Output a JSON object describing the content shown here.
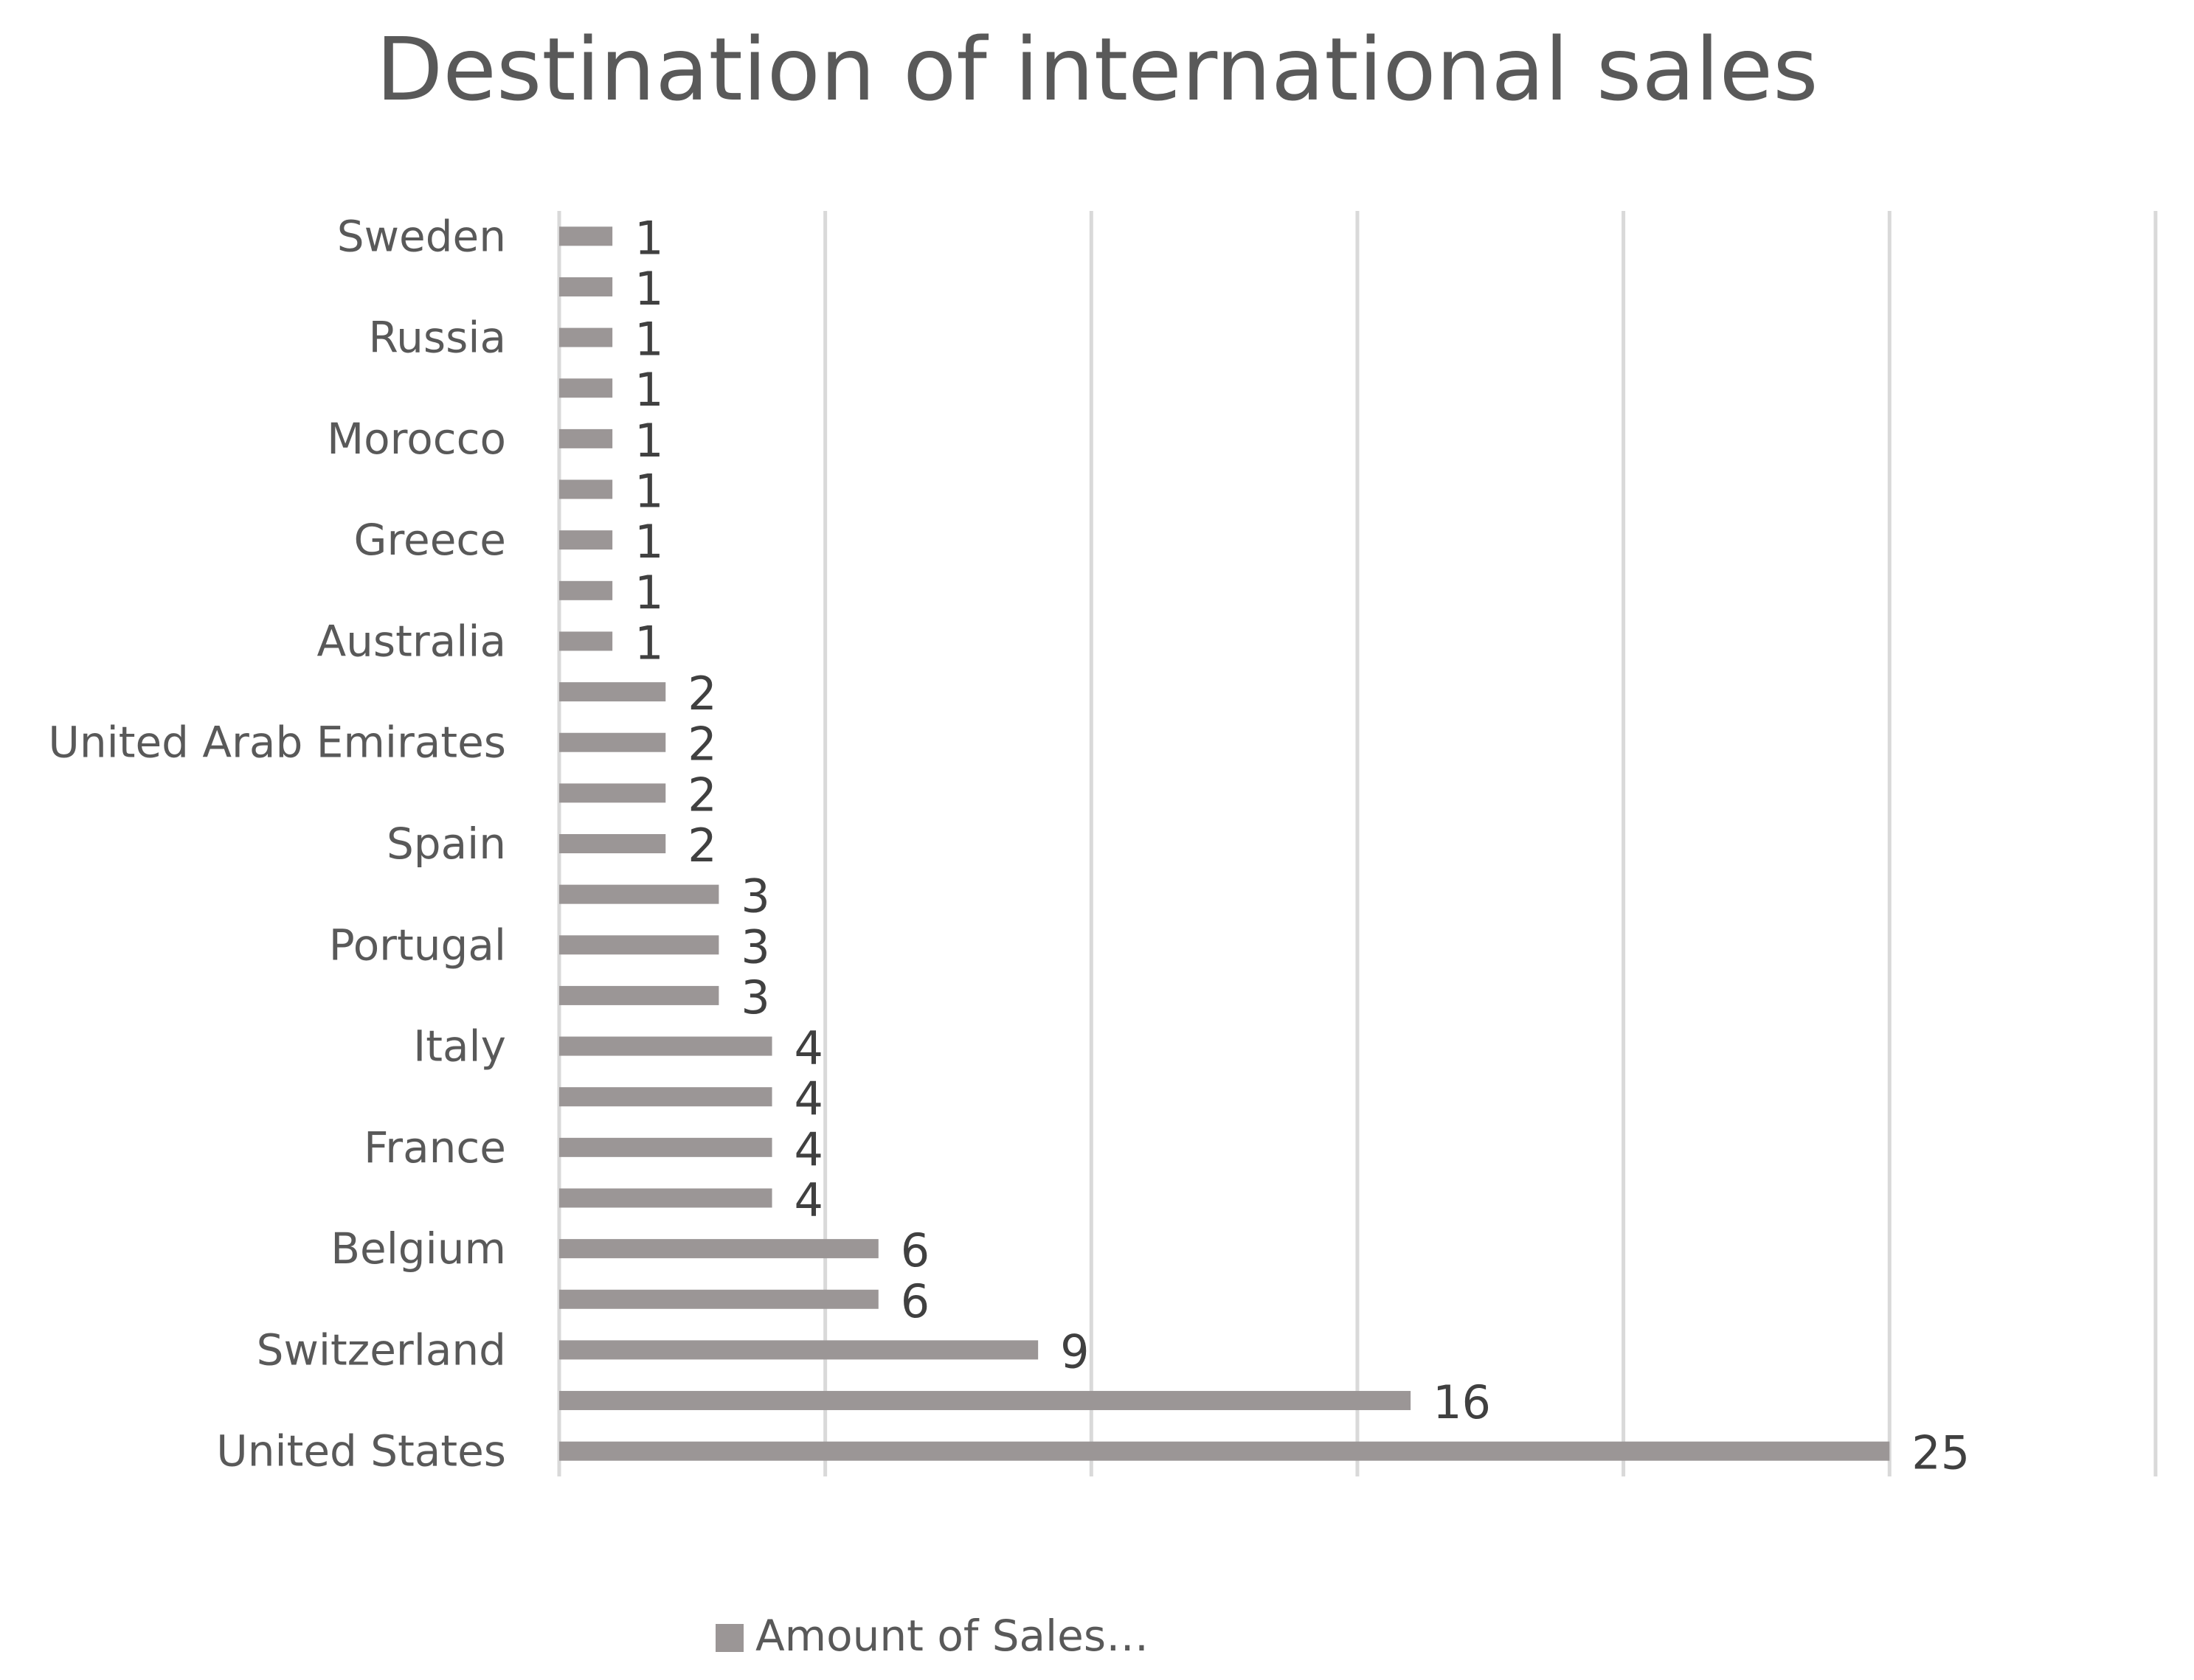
{
  "chart_data": {
    "type": "bar",
    "orientation": "horizontal",
    "title": "Destination of international sales",
    "categories": [
      "United States",
      "",
      "Switzerland",
      "",
      "Belgium",
      "",
      "France",
      "",
      "Italy",
      "",
      "Portugal",
      "",
      "Spain",
      "",
      "United Arab Emirates",
      "",
      "Australia",
      "",
      "Greece",
      "",
      "Morocco",
      "",
      "Russia",
      "",
      "Sweden"
    ],
    "series": [
      {
        "name": "Amount of Sales…",
        "values": [
          25,
          16,
          9,
          6,
          6,
          4,
          4,
          4,
          4,
          3,
          3,
          3,
          2,
          2,
          2,
          2,
          1,
          1,
          1,
          1,
          1,
          1,
          1,
          1,
          1
        ],
        "color": "#9b9696"
      }
    ],
    "xlim": [
      0,
      30
    ],
    "grid": "vertical",
    "data_labels": true,
    "legend_position": "bottom"
  },
  "colors": {
    "bar": "#9b9696",
    "gridline": "#d9d9d9",
    "text": "#595959",
    "data_label": "#404040"
  }
}
